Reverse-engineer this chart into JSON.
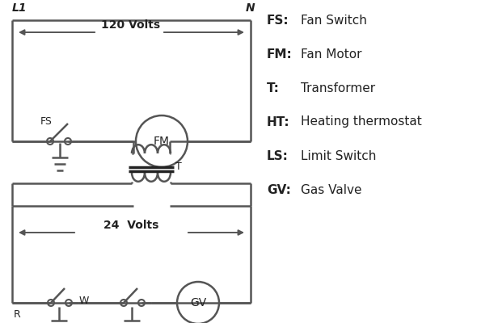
{
  "bg_color": "#ffffff",
  "line_color": "#555555",
  "dark_color": "#222222",
  "lw": 1.8,
  "legend": [
    [
      "FS:",
      "Fan Switch"
    ],
    [
      "FM:",
      "Fan Motor"
    ],
    [
      "T:",
      "Transformer"
    ],
    [
      "HT:",
      "Heating thermostat"
    ],
    [
      "LS:",
      "Limit Switch"
    ],
    [
      "GV:",
      "Gas Valve"
    ]
  ],
  "fig_w": 5.9,
  "fig_h": 4.0,
  "dpi": 100
}
